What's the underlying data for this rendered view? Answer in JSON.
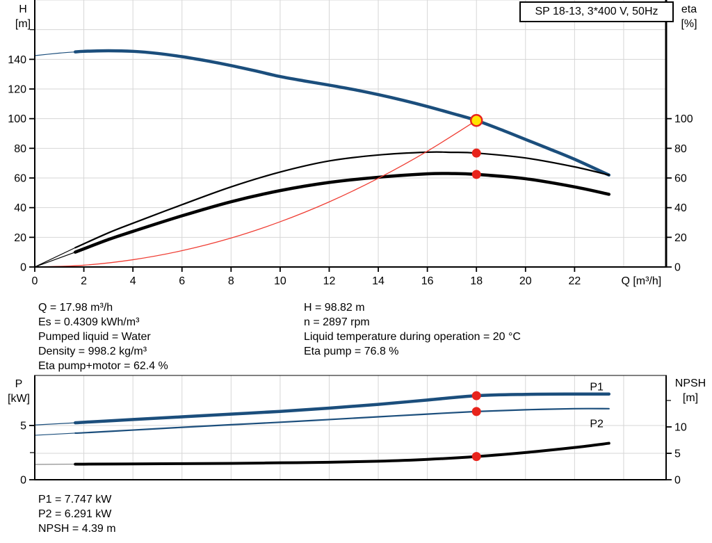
{
  "colors": {
    "curve_blue": "#1b4e7c",
    "label_blue": "#2563a8",
    "curve_black": "#000000",
    "system_red": "#ef3d33",
    "marker_red": "#e8241c",
    "duty_yellow": "#ffe500",
    "grid_gray": "#d6d6d6"
  },
  "info_top_left": [
    "Q = 17.98 m³/h",
    "Es = 0.4309 kWh/m³",
    "Pumped liquid = Water",
    "Density = 998.2 kg/m³",
    "Eta pump+motor = 62.4 %"
  ],
  "info_top_right": [
    "H = 98.82 m",
    "n = 2897 rpm",
    "Liquid temperature during operation = 20 °C",
    "Eta pump = 76.8 %"
  ],
  "info_bottom": [
    "P1 = 7.747 kW",
    "P2 = 6.291 kW",
    "NPSH = 4.39 m"
  ],
  "chart_data": [
    {
      "id": "hq",
      "name": "head-efficiency-chart",
      "type": "line",
      "title": "SP 18-13, 3*400 V, 50Hz",
      "x_axis": {
        "label": "Q [m³/h]",
        "range": [
          0,
          25.73
        ],
        "ticks": [
          0,
          2,
          4,
          6,
          8,
          10,
          12,
          14,
          16,
          18,
          20,
          22
        ],
        "grid": [
          2,
          4,
          6,
          8,
          10,
          12,
          14,
          16,
          18,
          20,
          22,
          24
        ],
        "show_tick_labels": true,
        "unit_label_q": 24.72
      },
      "left_axis": {
        "label": "H",
        "unit": "[m]",
        "range": [
          0,
          180
        ],
        "ticks": [
          0,
          20,
          40,
          60,
          80,
          100,
          120,
          140
        ],
        "minor_ticks": [
          160
        ],
        "grid": [
          20,
          40,
          60,
          80,
          100,
          120,
          140,
          160,
          180
        ]
      },
      "right_axis": {
        "label": "eta",
        "unit": "[%]",
        "range": [
          0,
          180
        ],
        "ticks": [
          0,
          20,
          40,
          60,
          80,
          100
        ],
        "minor_ticks": [],
        "grid": []
      },
      "series": [
        {
          "name": "head-curve",
          "legend": "H",
          "axis": "left",
          "color": "#1b4e7c",
          "width": 4.5,
          "thin_until": 1.65,
          "points": [
            [
              0,
              142.5
            ],
            [
              1,
              144.2
            ],
            [
              1.65,
              145.0
            ],
            [
              2,
              145.4
            ],
            [
              3,
              145.8
            ],
            [
              4,
              145.4
            ],
            [
              5,
              144.0
            ],
            [
              6,
              141.8
            ],
            [
              7,
              139.0
            ],
            [
              8,
              135.8
            ],
            [
              9,
              132.2
            ],
            [
              10,
              128.4
            ],
            [
              11,
              125.4
            ],
            [
              12,
              122.6
            ],
            [
              13,
              119.6
            ],
            [
              14,
              116.2
            ],
            [
              15,
              112.4
            ],
            [
              16,
              108.2
            ],
            [
              17,
              103.6
            ],
            [
              18,
              98.8
            ],
            [
              19,
              92.6
            ],
            [
              20,
              86.0
            ],
            [
              21,
              79.4
            ],
            [
              22,
              72.6
            ],
            [
              23.4,
              62.0
            ]
          ]
        },
        {
          "name": "eta-pump-motor-curve",
          "legend": "Eta pump+motor",
          "axis": "right",
          "color": "#000000",
          "width": 4.5,
          "thin_until": 1.65,
          "points": [
            [
              0,
              0
            ],
            [
              1.65,
              10
            ],
            [
              3,
              18.5
            ],
            [
              4,
              24
            ],
            [
              6,
              34.5
            ],
            [
              8,
              44
            ],
            [
              10,
              51.5
            ],
            [
              12,
              57
            ],
            [
              14,
              60.5
            ],
            [
              16,
              62.8
            ],
            [
              17,
              63.0
            ],
            [
              18,
              62.4
            ],
            [
              20,
              59.5
            ],
            [
              22,
              54
            ],
            [
              23.4,
              49
            ]
          ]
        },
        {
          "name": "eta-pump-curve",
          "legend": "Eta pump",
          "axis": "right",
          "color": "#000000",
          "width": 2.2,
          "thin_until": 1.65,
          "points": [
            [
              0,
              0
            ],
            [
              1.65,
              13
            ],
            [
              3,
              23
            ],
            [
              4,
              29.5
            ],
            [
              6,
              42
            ],
            [
              8,
              54
            ],
            [
              10,
              64
            ],
            [
              12,
              71.5
            ],
            [
              14,
              75.5
            ],
            [
              16,
              77.4
            ],
            [
              17,
              77.3
            ],
            [
              18,
              76.8
            ],
            [
              20,
              73.5
            ],
            [
              22,
              67.5
            ],
            [
              23.4,
              62
            ]
          ]
        },
        {
          "name": "system-curve",
          "legend": "Duty line",
          "axis": "left",
          "color": "#ef3d33",
          "width": 1.3,
          "thin_until": null,
          "points": [
            [
              0,
              0
            ],
            [
              2,
              1.2
            ],
            [
              4,
              4.9
            ],
            [
              6,
              11
            ],
            [
              8,
              19.5
            ],
            [
              10,
              30.5
            ],
            [
              12,
              43.9
            ],
            [
              14,
              59.8
            ],
            [
              16,
              78.1
            ],
            [
              18,
              98.8
            ]
          ]
        }
      ],
      "markers": [
        {
          "name": "duty-point",
          "style": "duty",
          "axis": "left",
          "q": 18,
          "v": 98.8
        },
        {
          "name": "eta-pump-op-point",
          "style": "dot",
          "axis": "right",
          "q": 18,
          "v": 76.8
        },
        {
          "name": "eta-pump-motor-op-point",
          "style": "dot",
          "axis": "right",
          "q": 18,
          "v": 62.4
        }
      ],
      "curve_labels": []
    },
    {
      "id": "pq",
      "name": "power-npsh-chart",
      "type": "line",
      "title": "",
      "x_axis": {
        "label": "",
        "range": [
          0,
          25.73
        ],
        "ticks": [],
        "grid": [
          2,
          4,
          6,
          8,
          10,
          12,
          14,
          16,
          18,
          20,
          22,
          24
        ],
        "show_tick_labels": false,
        "unit_label_q": null
      },
      "left_axis": {
        "label": "P",
        "unit": "[kW]",
        "range": [
          0,
          9.615
        ],
        "ticks": [
          0,
          5
        ],
        "minor_ticks": [
          2.5
        ],
        "grid": [
          5
        ]
      },
      "right_axis": {
        "label": "NPSH",
        "unit": "[m]",
        "range": [
          0,
          19.74
        ],
        "ticks": [
          0,
          5,
          10
        ],
        "minor_ticks": [
          15
        ],
        "grid": [
          5
        ]
      },
      "series": [
        {
          "name": "npsh-curve",
          "legend": "NPSH",
          "axis": "right",
          "color": "#000000",
          "width": 4,
          "thin_until": 1.65,
          "thin_color": "#8a8a8a",
          "points": [
            [
              0,
              2.9
            ],
            [
              1.65,
              2.95
            ],
            [
              2,
              2.95
            ],
            [
              4,
              3.0
            ],
            [
              6,
              3.05
            ],
            [
              8,
              3.1
            ],
            [
              10,
              3.2
            ],
            [
              12,
              3.3
            ],
            [
              14,
              3.5
            ],
            [
              16,
              3.85
            ],
            [
              18,
              4.39
            ],
            [
              20,
              5.15
            ],
            [
              22,
              6.1
            ],
            [
              23.4,
              6.9
            ]
          ]
        },
        {
          "name": "p2-curve",
          "legend": "P2",
          "axis": "left",
          "color": "#1b4e7c",
          "width": 2.2,
          "thin_until": 1.65,
          "points": [
            [
              0,
              4.1
            ],
            [
              1.65,
              4.3
            ],
            [
              2,
              4.33
            ],
            [
              4,
              4.58
            ],
            [
              6,
              4.83
            ],
            [
              8,
              5.07
            ],
            [
              10,
              5.3
            ],
            [
              12,
              5.55
            ],
            [
              14,
              5.8
            ],
            [
              16,
              6.05
            ],
            [
              18,
              6.291
            ],
            [
              20,
              6.45
            ],
            [
              22,
              6.55
            ],
            [
              23.4,
              6.55
            ]
          ]
        },
        {
          "name": "p1-curve",
          "legend": "P1",
          "axis": "left",
          "color": "#1b4e7c",
          "width": 4.5,
          "thin_until": 1.65,
          "points": [
            [
              0,
              5.05
            ],
            [
              1.65,
              5.25
            ],
            [
              2,
              5.3
            ],
            [
              4,
              5.55
            ],
            [
              6,
              5.8
            ],
            [
              8,
              6.05
            ],
            [
              10,
              6.3
            ],
            [
              12,
              6.6
            ],
            [
              14,
              6.95
            ],
            [
              16,
              7.35
            ],
            [
              18,
              7.747
            ],
            [
              20,
              7.87
            ],
            [
              22,
              7.9
            ],
            [
              23.4,
              7.9
            ]
          ]
        }
      ],
      "markers": [
        {
          "name": "p1-op-point",
          "style": "dot",
          "axis": "left",
          "q": 18,
          "v": 7.747
        },
        {
          "name": "p2-op-point",
          "style": "dot",
          "axis": "left",
          "q": 18,
          "v": 6.291
        },
        {
          "name": "npsh-op-point",
          "style": "dot",
          "axis": "right",
          "q": 18,
          "v": 4.39
        }
      ],
      "curve_labels": [
        {
          "name": "p1-curve-label",
          "text": "P1",
          "axis": "left",
          "q": 22.9,
          "v": 8.55,
          "color": "#2563a8"
        },
        {
          "name": "p2-curve-label",
          "text": "P2",
          "axis": "left",
          "q": 22.9,
          "v": 5.15,
          "color": "#2563a8"
        }
      ]
    }
  ]
}
